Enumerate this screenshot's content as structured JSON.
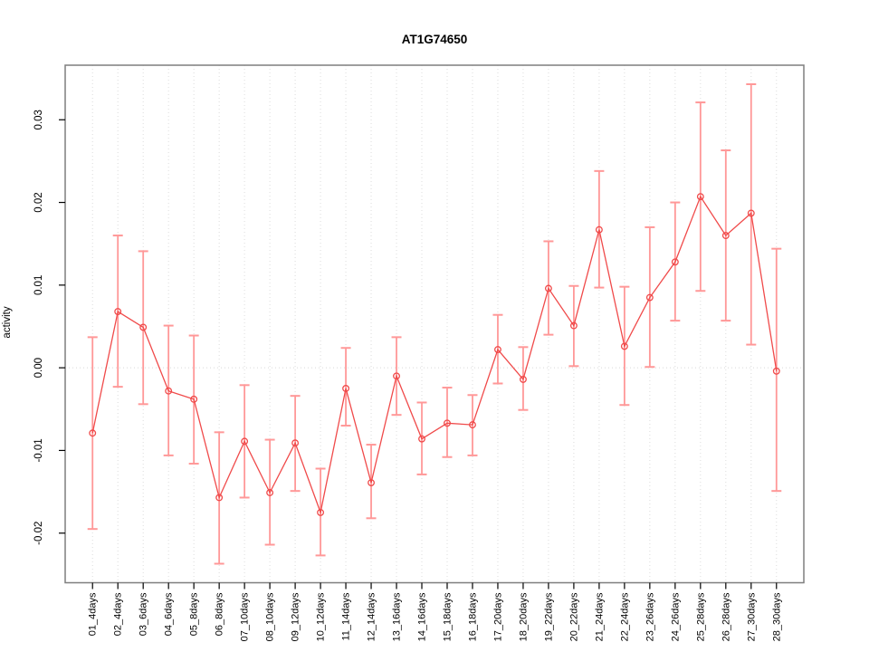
{
  "page": {
    "title": "AT1G74650"
  },
  "chart_data": {
    "type": "line",
    "title": "AT1G74650",
    "xlabel": "",
    "ylabel": "activity",
    "legend_position": "none",
    "point_style": "open-circle",
    "grid": {
      "vertical_dotted_per_category": true,
      "horizontal_dotted_zero_line": true
    },
    "categories": [
      "01_4days",
      "02_4days",
      "03_6days",
      "04_6days",
      "05_8days",
      "06_8days",
      "07_10days",
      "08_10days",
      "09_12days",
      "10_12days",
      "11_14days",
      "12_14days",
      "13_16days",
      "14_16days",
      "15_18days",
      "16_18days",
      "17_20days",
      "18_20days",
      "19_22days",
      "20_22days",
      "21_24days",
      "22_24days",
      "23_26days",
      "24_26days",
      "25_28days",
      "26_28days",
      "27_30days",
      "28_30days"
    ],
    "series": [
      {
        "name": "activity",
        "values": [
          -0.0079,
          0.0068,
          0.0049,
          -0.0028,
          -0.0038,
          -0.0157,
          -0.0089,
          -0.0151,
          -0.0091,
          -0.0175,
          -0.0025,
          -0.0139,
          -0.001,
          -0.0086,
          -0.0067,
          -0.0069,
          0.0022,
          -0.0014,
          0.0096,
          0.0051,
          0.0167,
          0.0026,
          0.0085,
          0.0128,
          0.0207,
          0.016,
          0.0187,
          -0.0004
        ],
        "err_high": [
          0.0037,
          0.016,
          0.0141,
          0.0051,
          0.0039,
          -0.0078,
          -0.0021,
          -0.0087,
          -0.0034,
          -0.0122,
          0.0024,
          -0.0093,
          0.0037,
          -0.0042,
          -0.0024,
          -0.0033,
          0.0064,
          0.0025,
          0.0153,
          0.0099,
          0.0238,
          0.0098,
          0.017,
          0.02,
          0.0321,
          0.0263,
          0.0343,
          0.0144
        ],
        "err_low": [
          -0.0195,
          -0.0023,
          -0.0044,
          -0.0106,
          -0.0116,
          -0.0237,
          -0.0157,
          -0.0214,
          -0.0149,
          -0.0227,
          -0.007,
          -0.0182,
          -0.0057,
          -0.0129,
          -0.0108,
          -0.0106,
          -0.0019,
          -0.0051,
          0.004,
          0.0002,
          0.0097,
          -0.0045,
          0.0001,
          0.0057,
          0.0093,
          0.0057,
          0.0028,
          -0.0149
        ]
      }
    ],
    "y_ticks": [
      0.03,
      0.02,
      0.01,
      0,
      -0.01,
      -0.02
    ],
    "ylim": [
      -0.026,
      0.0366
    ],
    "colors": {
      "series_line": "#f04a4a",
      "point_stroke": "#f04a4a",
      "error_bar": "#ff9898",
      "grid": "#dcdcdc",
      "zero_line": "#d8d8d8",
      "plot_border": "#7f7f7f",
      "tick": "#000000",
      "text": "#000000",
      "background": "#ffffff"
    }
  }
}
